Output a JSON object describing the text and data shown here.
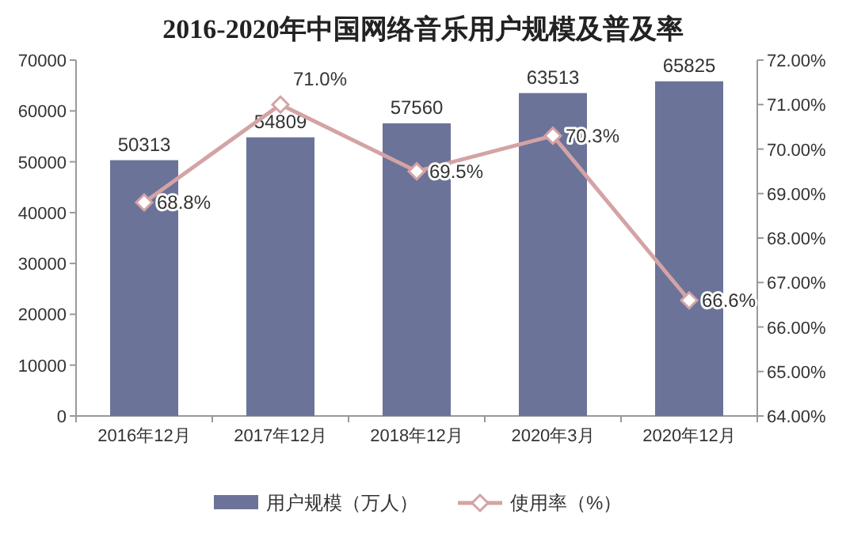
{
  "chart_data": {
    "type": "bar",
    "title": "2016-2020年中国网络音乐用户规模及普及率",
    "categories": [
      "2016年12月",
      "2017年12月",
      "2018年12月",
      "2020年3月",
      "2020年12月"
    ],
    "series": [
      {
        "name": "用户规模（万人）",
        "color": "#6b7399",
        "values": [
          50313,
          54809,
          57560,
          63513,
          65825
        ],
        "value_labels": [
          "50313",
          "54809",
          "57560",
          "63513",
          "65825"
        ]
      },
      {
        "name": "使用率（%）",
        "type": "line",
        "axis": "y2",
        "color": "#d4a3a5",
        "values": [
          68.8,
          71.0,
          69.5,
          70.3,
          66.6
        ],
        "value_labels": [
          "68.8%",
          "71.0%",
          "69.5%",
          "70.3%",
          "66.6%"
        ]
      }
    ],
    "ylim": [
      0,
      70000
    ],
    "yticks": [
      0,
      10000,
      20000,
      30000,
      40000,
      50000,
      60000,
      70000
    ],
    "y2lim": [
      64,
      72
    ],
    "y2ticks": [
      {
        "value": 64,
        "label": "64.00%"
      },
      {
        "value": 65,
        "label": "65.00%"
      },
      {
        "value": 66,
        "label": "66.00%"
      },
      {
        "value": 67,
        "label": "67.00%"
      },
      {
        "value": 68,
        "label": "68.00%"
      },
      {
        "value": 69,
        "label": "69.00%"
      },
      {
        "value": 70,
        "label": "70.00%"
      },
      {
        "value": 71,
        "label": "71.00%"
      },
      {
        "value": 72,
        "label": "72.00%"
      }
    ],
    "marker": "diamond",
    "legend": "bottom",
    "grid": false
  }
}
